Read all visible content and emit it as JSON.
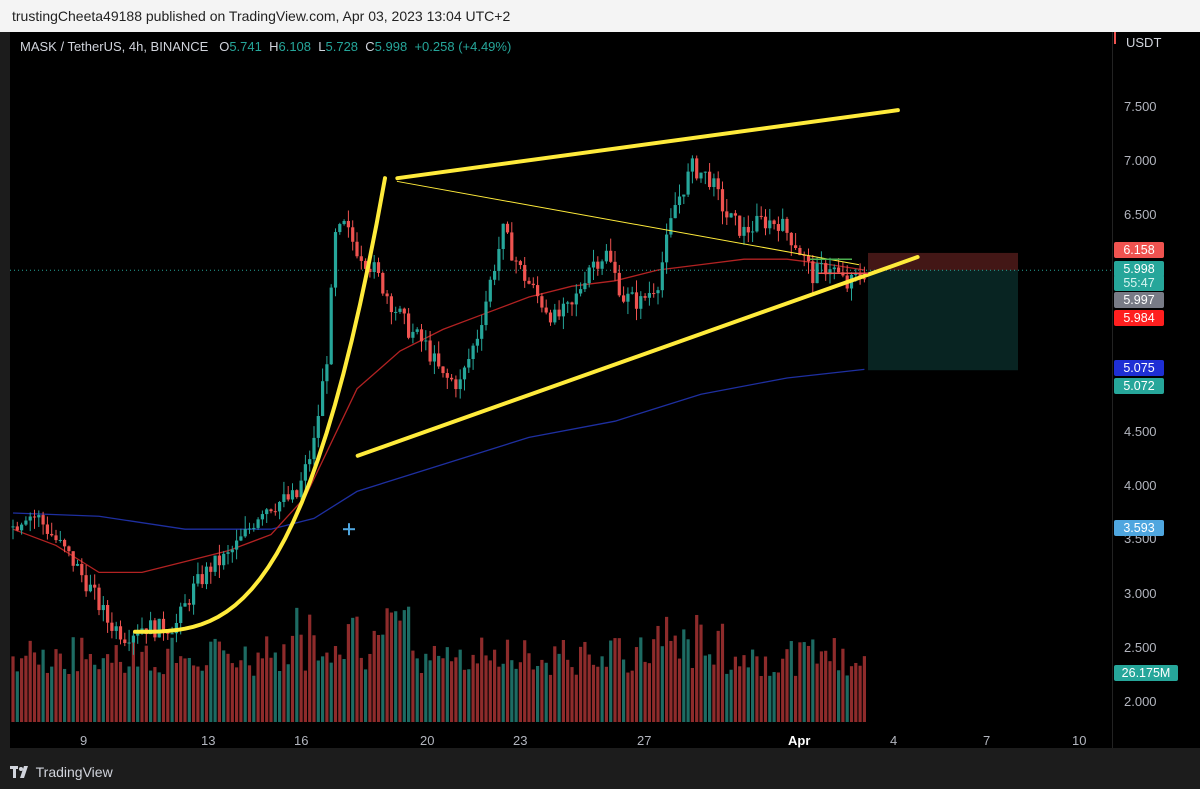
{
  "header": {
    "published_text": "trustingCheeta49188 published on TradingView.com, Apr 03, 2023 13:04 UTC+2"
  },
  "legend": {
    "symbol": "MASK / TetherUS, 4h, BINANCE",
    "open_label": "O",
    "open": "5.741",
    "high_label": "H",
    "high": "6.108",
    "low_label": "L",
    "low": "5.728",
    "close_label": "C",
    "close": "5.998",
    "change": "+0.258 (+4.49%)"
  },
  "price_axis": {
    "currency": "USDT",
    "ticks": [
      "7.500",
      "7.000",
      "6.500",
      "4.500",
      "4.000",
      "3.000",
      "2.500",
      "2.000"
    ],
    "partial_ticks": [
      "5.500",
      "3.500"
    ]
  },
  "price_badges": {
    "stop": "6.158",
    "last": "5.998",
    "countdown": "55:47",
    "gray": "5.997",
    "red": "5.984",
    "blue": "5.075",
    "target": "5.072",
    "ma": "3.593",
    "volume": "26.175M"
  },
  "time_axis": {
    "ticks": [
      "9",
      "13",
      "16",
      "20",
      "23",
      "27",
      "Apr",
      "4",
      "7",
      "10"
    ]
  },
  "footer": {
    "brand": "TradingView"
  },
  "colors": {
    "up": "#26a69a",
    "down": "#ef5350",
    "yellow": "#ffeb3b",
    "ma_red": "#b22222",
    "ma_blue": "#1e2fa0",
    "badge_blue": "#1e2fd4",
    "badge_cyan": "#4fa6df"
  },
  "chart_data": {
    "type": "candlestick",
    "title": "MASK / TetherUS, 4h, BINANCE",
    "y_axis": {
      "min": 1.8,
      "max": 7.8,
      "ticks": [
        2.0,
        2.5,
        3.0,
        3.5,
        4.0,
        4.5,
        5.0,
        5.5,
        6.0,
        6.5,
        7.0,
        7.5
      ]
    },
    "price_path_anchors": [
      [
        0,
        3.62
      ],
      [
        3,
        3.75
      ],
      [
        6,
        3.7
      ],
      [
        10,
        3.5
      ],
      [
        14,
        3.3
      ],
      [
        18,
        3.05
      ],
      [
        22,
        2.75
      ],
      [
        26,
        2.62
      ],
      [
        30,
        2.7
      ],
      [
        34,
        2.68
      ],
      [
        38,
        2.72
      ],
      [
        42,
        3.05
      ],
      [
        46,
        3.25
      ],
      [
        50,
        3.35
      ],
      [
        54,
        3.55
      ],
      [
        58,
        3.8
      ],
      [
        62,
        3.85
      ],
      [
        66,
        3.9
      ],
      [
        70,
        4.4
      ],
      [
        73,
        5.2
      ],
      [
        75,
        6.3
      ],
      [
        77,
        6.4
      ],
      [
        80,
        6.2
      ],
      [
        84,
        6.0
      ],
      [
        88,
        5.7
      ],
      [
        92,
        5.45
      ],
      [
        96,
        5.3
      ],
      [
        100,
        5.0
      ],
      [
        104,
        4.95
      ],
      [
        108,
        5.4
      ],
      [
        112,
        6.05
      ],
      [
        114,
        6.35
      ],
      [
        118,
        6.0
      ],
      [
        122,
        5.75
      ],
      [
        126,
        5.55
      ],
      [
        130,
        5.65
      ],
      [
        134,
        6.05
      ],
      [
        138,
        6.15
      ],
      [
        142,
        5.75
      ],
      [
        146,
        5.7
      ],
      [
        150,
        5.9
      ],
      [
        154,
        6.6
      ],
      [
        158,
        6.95
      ],
      [
        162,
        6.85
      ],
      [
        166,
        6.5
      ],
      [
        170,
        6.35
      ],
      [
        174,
        6.45
      ],
      [
        178,
        6.45
      ],
      [
        182,
        6.25
      ],
      [
        186,
        5.95
      ],
      [
        190,
        6.05
      ],
      [
        194,
        5.85
      ],
      [
        198,
        5.98
      ]
    ],
    "ma_red": [
      [
        0,
        3.6
      ],
      [
        10,
        3.45
      ],
      [
        20,
        3.2
      ],
      [
        30,
        3.2
      ],
      [
        40,
        3.3
      ],
      [
        50,
        3.4
      ],
      [
        60,
        3.55
      ],
      [
        68,
        3.9
      ],
      [
        74,
        4.4
      ],
      [
        80,
        4.9
      ],
      [
        90,
        5.25
      ],
      [
        100,
        5.45
      ],
      [
        110,
        5.6
      ],
      [
        120,
        5.75
      ],
      [
        130,
        5.85
      ],
      [
        140,
        5.9
      ],
      [
        150,
        6.0
      ],
      [
        160,
        6.05
      ],
      [
        170,
        6.1
      ],
      [
        180,
        6.1
      ],
      [
        190,
        6.05
      ],
      [
        198,
        6.0
      ]
    ],
    "ma_blue": [
      [
        0,
        3.75
      ],
      [
        20,
        3.72
      ],
      [
        40,
        3.6
      ],
      [
        60,
        3.6
      ],
      [
        70,
        3.7
      ],
      [
        80,
        3.95
      ],
      [
        100,
        4.2
      ],
      [
        120,
        4.45
      ],
      [
        140,
        4.6
      ],
      [
        160,
        4.85
      ],
      [
        180,
        5.0
      ],
      [
        198,
        5.08
      ]
    ],
    "trend_lines": [
      {
        "name": "upper-resistance",
        "from": [
          0.3515,
          6.85
        ],
        "to": [
          0.8057,
          7.48
        ]
      },
      {
        "name": "lower-support",
        "from": [
          0.3155,
          4.28
        ],
        "to": [
          0.8236,
          6.12
        ]
      },
      {
        "name": "thin-diagonal",
        "from": [
          0.3515,
          6.82
        ],
        "to": [
          0.77,
          6.05
        ]
      }
    ],
    "position": {
      "entry": 5.998,
      "stop": 6.158,
      "target": 5.072
    }
  }
}
